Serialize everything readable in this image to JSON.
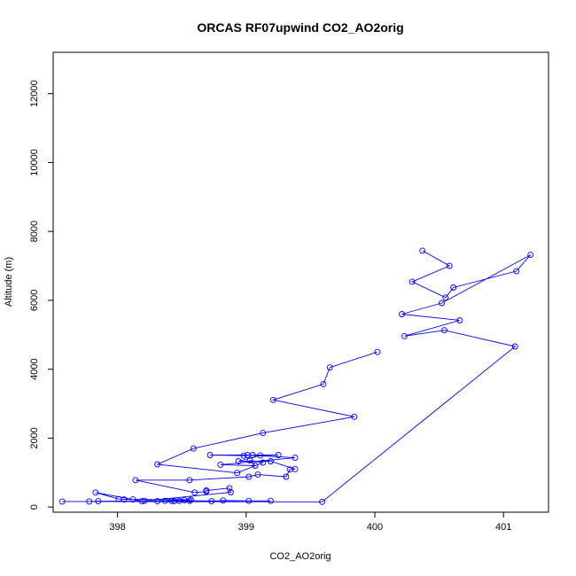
{
  "chart_data": {
    "type": "line",
    "title": "ORCAS RF07upwind CO2_AO2orig",
    "xlabel": "CO2_AO2orig",
    "ylabel": "Altitude (m)",
    "xlim": [
      397.5,
      401.35
    ],
    "ylim": [
      -150,
      13200
    ],
    "x_ticks": [
      398,
      399,
      400,
      401
    ],
    "y_ticks": [
      0,
      2000,
      4000,
      6000,
      8000,
      10000,
      12000
    ],
    "grid": false,
    "legend": "none",
    "marker": "open-circle",
    "color": "#0000ff",
    "series": [
      {
        "points": [
          [
            400.37,
            7440
          ],
          [
            400.58,
            7000
          ],
          [
            400.29,
            6540
          ],
          [
            400.55,
            6080
          ],
          [
            400.61,
            6370
          ],
          [
            401.1,
            6850
          ],
          [
            401.21,
            7320
          ],
          [
            400.52,
            5920
          ],
          [
            400.21,
            5600
          ],
          [
            400.66,
            5420
          ],
          [
            400.23,
            4960
          ],
          [
            400.54,
            5130
          ],
          [
            401.09,
            4660
          ],
          [
            399.59,
            150
          ],
          [
            397.57,
            160
          ],
          [
            397.78,
            160
          ],
          [
            397.85,
            170
          ],
          [
            398.31,
            170
          ],
          [
            398.52,
            200
          ],
          [
            398.57,
            210
          ],
          [
            398.12,
            220
          ],
          [
            398.05,
            220
          ],
          [
            398.01,
            230
          ],
          [
            397.83,
            420
          ],
          [
            398.19,
            170
          ],
          [
            398.44,
            170
          ],
          [
            398.56,
            180
          ],
          [
            398.73,
            170
          ],
          [
            398.82,
            190
          ],
          [
            399.02,
            180
          ],
          [
            399.19,
            180
          ],
          [
            398.42,
            180
          ],
          [
            398.48,
            180
          ],
          [
            398.37,
            180
          ],
          [
            398.21,
            180
          ],
          [
            398.88,
            430
          ],
          [
            398.87,
            550
          ],
          [
            398.69,
            480
          ],
          [
            398.69,
            450
          ],
          [
            398.6,
            420
          ],
          [
            398.14,
            780
          ],
          [
            398.56,
            780
          ],
          [
            399.02,
            880
          ],
          [
            399.09,
            940
          ],
          [
            399.31,
            880
          ],
          [
            399.34,
            1090
          ],
          [
            399.38,
            1100
          ],
          [
            399.19,
            1330
          ],
          [
            398.94,
            1330
          ],
          [
            399.11,
            1500
          ],
          [
            399.25,
            1510
          ],
          [
            399.05,
            1510
          ],
          [
            398.98,
            1490
          ],
          [
            398.72,
            1510
          ],
          [
            399.01,
            1510
          ],
          [
            399.38,
            1430
          ],
          [
            398.8,
            1230
          ],
          [
            399.07,
            1200
          ],
          [
            399.03,
            1350
          ],
          [
            399.13,
            1290
          ],
          [
            398.93,
            990
          ],
          [
            398.31,
            1240
          ],
          [
            398.59,
            1700
          ],
          [
            399.13,
            2150
          ],
          [
            399.84,
            2620
          ],
          [
            399.21,
            3110
          ],
          [
            399.6,
            3570
          ],
          [
            399.65,
            4050
          ],
          [
            400.02,
            4500
          ]
        ]
      }
    ]
  }
}
